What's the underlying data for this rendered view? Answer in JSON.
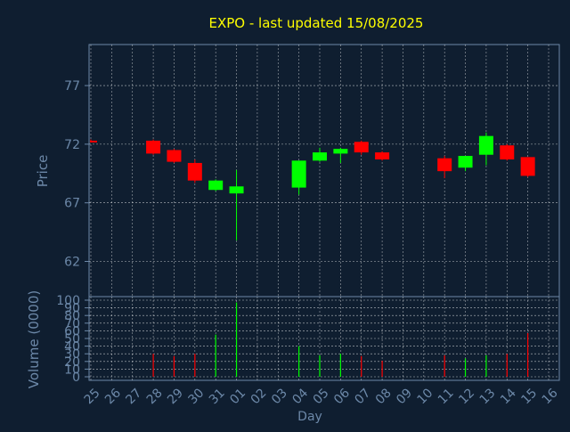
{
  "chart_data": {
    "type": "candlestick",
    "title": "EXPO - last updated 15/08/2025",
    "price_panel": {
      "ylabel": "Price",
      "yticks": [
        62,
        67,
        72,
        77
      ],
      "ylim": [
        59,
        80.5
      ]
    },
    "volume_panel": {
      "ylabel": "Volume (0000)",
      "yticks": [
        0,
        10,
        20,
        30,
        40,
        50,
        60,
        70,
        80,
        90,
        100
      ],
      "ylim": [
        0,
        100
      ]
    },
    "xlabel": "Day",
    "x_tick_labels": [
      "25",
      "26",
      "27",
      "28",
      "29",
      "30",
      "31",
      "01",
      "02",
      "03",
      "04",
      "05",
      "06",
      "07",
      "08",
      "09",
      "10",
      "11",
      "12",
      "13",
      "14",
      "15",
      "16"
    ],
    "grid": true,
    "colors": {
      "background": "#0f1e30",
      "axis": "#6c88a8",
      "grid": "#ffffff",
      "title": "#ffff00",
      "label": "#6c88a8",
      "up": "#00ff00",
      "down": "#ff0000"
    },
    "candles": [
      {
        "x": "25",
        "open": 72.3,
        "high": 72.4,
        "low": 72.2,
        "close": 72.2,
        "volume": 0
      },
      {
        "x": "28",
        "open": 72.3,
        "high": 72.4,
        "low": 71.1,
        "close": 71.2,
        "volume": 30
      },
      {
        "x": "29",
        "open": 71.5,
        "high": 71.6,
        "low": 70.4,
        "close": 70.5,
        "volume": 27
      },
      {
        "x": "30",
        "open": 70.4,
        "high": 70.7,
        "low": 68.7,
        "close": 68.9,
        "volume": 30
      },
      {
        "x": "31",
        "open": 68.1,
        "high": 69.0,
        "low": 68.0,
        "close": 68.9,
        "volume": 55
      },
      {
        "x": "01",
        "open": 67.8,
        "high": 69.8,
        "low": 63.8,
        "close": 68.4,
        "volume": 97
      },
      {
        "x": "04",
        "open": 68.3,
        "high": 70.6,
        "low": 67.7,
        "close": 70.6,
        "volume": 40
      },
      {
        "x": "05",
        "open": 70.6,
        "high": 71.7,
        "low": 70.5,
        "close": 71.3,
        "volume": 28
      },
      {
        "x": "06",
        "open": 71.2,
        "high": 71.7,
        "low": 70.4,
        "close": 71.6,
        "volume": 30
      },
      {
        "x": "07",
        "open": 72.2,
        "high": 72.3,
        "low": 71.1,
        "close": 71.3,
        "volume": 27
      },
      {
        "x": "08",
        "open": 71.3,
        "high": 71.4,
        "low": 70.6,
        "close": 70.7,
        "volume": 21
      },
      {
        "x": "11",
        "open": 70.8,
        "high": 71.0,
        "low": 69.1,
        "close": 69.7,
        "volume": 28
      },
      {
        "x": "12",
        "open": 70.0,
        "high": 71.0,
        "low": 69.7,
        "close": 71.0,
        "volume": 24
      },
      {
        "x": "13",
        "open": 71.1,
        "high": 73.0,
        "low": 70.2,
        "close": 72.7,
        "volume": 28
      },
      {
        "x": "14",
        "open": 71.9,
        "high": 72.0,
        "low": 70.6,
        "close": 70.7,
        "volume": 30
      },
      {
        "x": "15",
        "open": 70.9,
        "high": 70.9,
        "low": 69.2,
        "close": 69.3,
        "volume": 57
      }
    ]
  }
}
